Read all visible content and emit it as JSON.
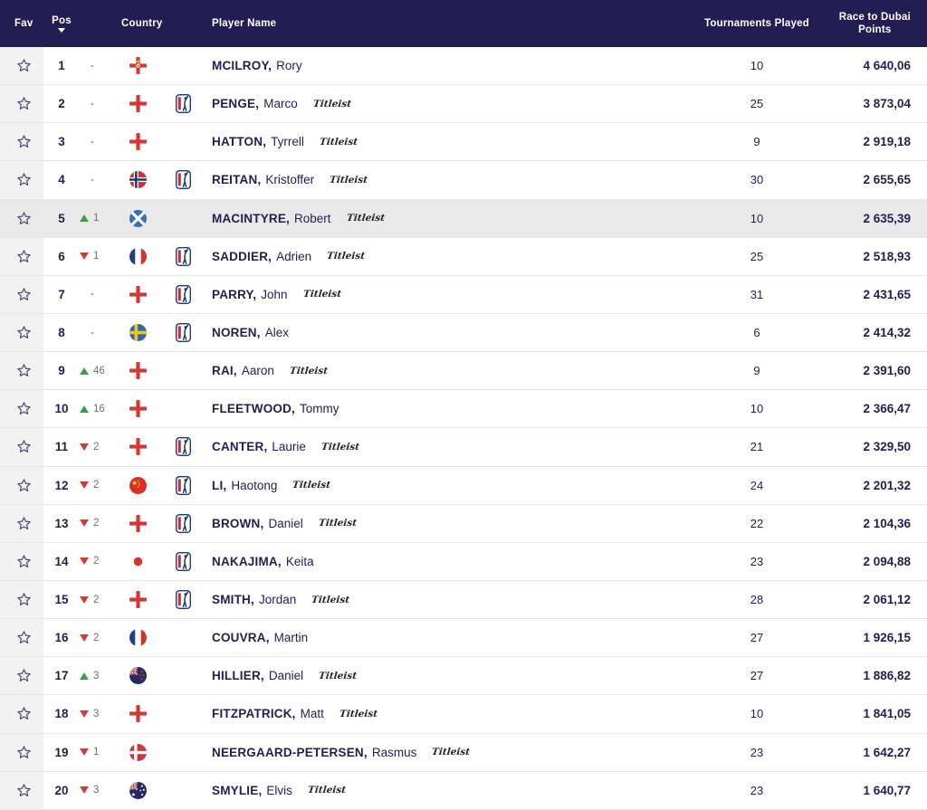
{
  "table": {
    "columns": {
      "fav": "Fav",
      "pos": "Pos",
      "country": "Country",
      "player": "Player Name",
      "tournaments": "Tournaments Played",
      "points_line1": "Race to Dubai",
      "points_line2": "Points"
    },
    "move_dash": "-",
    "rows": [
      {
        "pos": "1",
        "move": "none",
        "move_value": "",
        "country": "northern-ireland",
        "tour": false,
        "last": "MCILROY",
        "first": "Rory",
        "brand": "",
        "tournaments": "10",
        "points": "4 640,06",
        "highlighted": false
      },
      {
        "pos": "2",
        "move": "none",
        "move_value": "",
        "country": "england",
        "tour": true,
        "last": "PENGE",
        "first": "Marco",
        "brand": "Titleist",
        "tournaments": "25",
        "points": "3 873,04",
        "highlighted": false
      },
      {
        "pos": "3",
        "move": "none",
        "move_value": "",
        "country": "england",
        "tour": false,
        "last": "HATTON",
        "first": "Tyrrell",
        "brand": "Titleist",
        "tournaments": "9",
        "points": "2 919,18",
        "highlighted": false
      },
      {
        "pos": "4",
        "move": "none",
        "move_value": "",
        "country": "norway",
        "tour": true,
        "last": "REITAN",
        "first": "Kristoffer",
        "brand": "Titleist",
        "tournaments": "30",
        "points": "2 655,65",
        "highlighted": false
      },
      {
        "pos": "5",
        "move": "up",
        "move_value": "1",
        "country": "scotland",
        "tour": false,
        "last": "MACINTYRE",
        "first": "Robert",
        "brand": "Titleist",
        "tournaments": "10",
        "points": "2 635,39",
        "highlighted": true
      },
      {
        "pos": "6",
        "move": "down",
        "move_value": "1",
        "country": "france",
        "tour": true,
        "last": "SADDIER",
        "first": "Adrien",
        "brand": "Titleist",
        "tournaments": "25",
        "points": "2 518,93",
        "highlighted": false
      },
      {
        "pos": "7",
        "move": "none",
        "move_value": "",
        "country": "england",
        "tour": true,
        "last": "PARRY",
        "first": "John",
        "brand": "Titleist",
        "tournaments": "31",
        "points": "2 431,65",
        "highlighted": false
      },
      {
        "pos": "8",
        "move": "none",
        "move_value": "",
        "country": "sweden",
        "tour": true,
        "last": "NOREN",
        "first": "Alex",
        "brand": "",
        "tournaments": "6",
        "points": "2 414,32",
        "highlighted": false
      },
      {
        "pos": "9",
        "move": "up",
        "move_value": "46",
        "country": "england",
        "tour": false,
        "last": "RAI",
        "first": "Aaron",
        "brand": "Titleist",
        "tournaments": "9",
        "points": "2 391,60",
        "highlighted": false
      },
      {
        "pos": "10",
        "move": "up",
        "move_value": "16",
        "country": "england",
        "tour": false,
        "last": "FLEETWOOD",
        "first": "Tommy",
        "brand": "",
        "tournaments": "10",
        "points": "2 366,47",
        "highlighted": false
      },
      {
        "pos": "11",
        "move": "down",
        "move_value": "2",
        "country": "england",
        "tour": true,
        "last": "CANTER",
        "first": "Laurie",
        "brand": "Titleist",
        "tournaments": "21",
        "points": "2 329,50",
        "highlighted": false
      },
      {
        "pos": "12",
        "move": "down",
        "move_value": "2",
        "country": "china",
        "tour": true,
        "last": "LI",
        "first": "Haotong",
        "brand": "Titleist",
        "tournaments": "24",
        "points": "2 201,32",
        "highlighted": false
      },
      {
        "pos": "13",
        "move": "down",
        "move_value": "2",
        "country": "england",
        "tour": true,
        "last": "BROWN",
        "first": "Daniel",
        "brand": "Titleist",
        "tournaments": "22",
        "points": "2 104,36",
        "highlighted": false
      },
      {
        "pos": "14",
        "move": "down",
        "move_value": "2",
        "country": "japan",
        "tour": true,
        "last": "NAKAJIMA",
        "first": "Keita",
        "brand": "",
        "tournaments": "23",
        "points": "2 094,88",
        "highlighted": false
      },
      {
        "pos": "15",
        "move": "down",
        "move_value": "2",
        "country": "england",
        "tour": true,
        "last": "SMITH",
        "first": "Jordan",
        "brand": "Titleist",
        "tournaments": "28",
        "points": "2 061,12",
        "highlighted": false
      },
      {
        "pos": "16",
        "move": "down",
        "move_value": "2",
        "country": "france",
        "tour": false,
        "last": "COUVRA",
        "first": "Martin",
        "brand": "",
        "tournaments": "27",
        "points": "1 926,15",
        "highlighted": false
      },
      {
        "pos": "17",
        "move": "up",
        "move_value": "3",
        "country": "new-zealand",
        "tour": false,
        "last": "HILLIER",
        "first": "Daniel",
        "brand": "Titleist",
        "tournaments": "27",
        "points": "1 886,82",
        "highlighted": false
      },
      {
        "pos": "18",
        "move": "down",
        "move_value": "3",
        "country": "england",
        "tour": false,
        "last": "FITZPATRICK",
        "first": "Matt",
        "brand": "Titleist",
        "tournaments": "10",
        "points": "1 841,05",
        "highlighted": false
      },
      {
        "pos": "19",
        "move": "down",
        "move_value": "1",
        "country": "denmark",
        "tour": false,
        "last": "NEERGAARD-PETERSEN",
        "first": "Rasmus",
        "brand": "Titleist",
        "tournaments": "23",
        "points": "1 642,27",
        "highlighted": false
      },
      {
        "pos": "20",
        "move": "down",
        "move_value": "3",
        "country": "australia",
        "tour": false,
        "last": "SMYLIE",
        "first": "Elvis",
        "brand": "Titleist",
        "tournaments": "23",
        "points": "1 640,77",
        "highlighted": false
      }
    ]
  },
  "icons": {
    "favorite": "star-outline-icon",
    "sort": "sort-descending-caret-icon",
    "tour_logo": "pga-tour-logo-icon",
    "flags": [
      "northern-ireland",
      "england",
      "norway",
      "scotland",
      "france",
      "sweden",
      "china",
      "japan",
      "denmark",
      "new-zealand",
      "australia"
    ]
  },
  "colors": {
    "header_bg": "#231d54",
    "text": "#231e50",
    "move_up": "#3e9c4e",
    "move_down": "#d23b36",
    "row_highlight": "#e9e9ea",
    "fav_column_bg": "#f2f2f3",
    "star_outline": "#4a4576"
  }
}
